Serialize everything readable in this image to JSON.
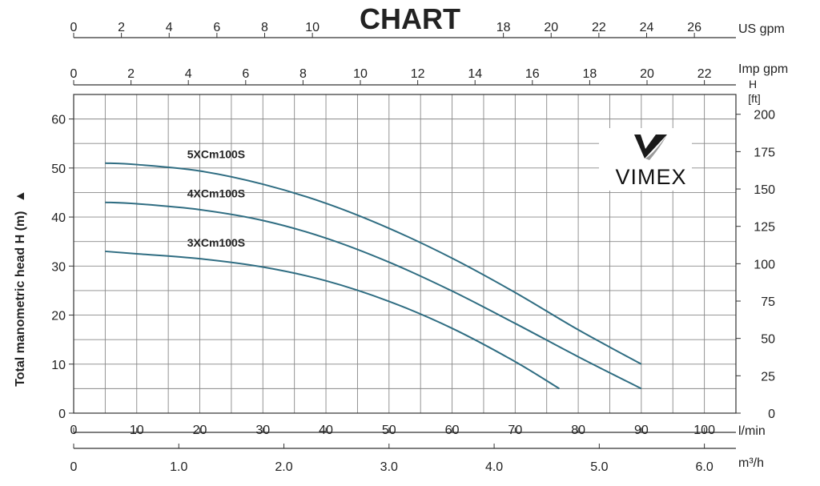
{
  "chart_data": {
    "type": "line",
    "title": "CHART",
    "ylabel": "Total manometric head H (m)",
    "ylabel_arrow": "▲",
    "x_axis_lmin": {
      "unit": "l/min",
      "range": [
        0,
        105
      ],
      "ticks": [
        0,
        10,
        20,
        30,
        40,
        50,
        60,
        70,
        80,
        90,
        100
      ]
    },
    "x_axis_m3h": {
      "unit": "m³/h",
      "range": [
        0,
        6.3
      ],
      "ticks": [
        0,
        1.0,
        2.0,
        3.0,
        4.0,
        5.0,
        6.0
      ],
      "tick_labels": [
        "0",
        "1.0",
        "2.0",
        "3.0",
        "4.0",
        "5.0",
        "6.0"
      ]
    },
    "x_axis_usgpm": {
      "unit": "US gpm",
      "range": [
        0,
        27.74
      ],
      "ticks": [
        0,
        2,
        4,
        6,
        8,
        10,
        18,
        20,
        22,
        24,
        26
      ]
    },
    "x_axis_impgpm": {
      "unit": "Imp gpm",
      "range": [
        0,
        23.1
      ],
      "ticks": [
        0,
        2,
        4,
        6,
        8,
        10,
        12,
        14,
        16,
        18,
        20,
        22
      ]
    },
    "y_axis_m": {
      "range": [
        0,
        65
      ],
      "ticks": [
        0,
        10,
        20,
        30,
        40,
        50,
        60
      ]
    },
    "y_axis_ft": {
      "unit_top": "H",
      "unit": "[ft]",
      "range": [
        0,
        213.25
      ],
      "ticks": [
        0,
        25,
        50,
        75,
        100,
        125,
        150,
        175,
        200
      ]
    },
    "grid": true,
    "series": [
      {
        "name": "5XCm100S",
        "x": [
          5,
          10,
          20,
          30,
          40,
          50,
          60,
          70,
          80,
          90
        ],
        "y": [
          51,
          50.7,
          49.4,
          46.7,
          42.8,
          37.7,
          31.6,
          24.6,
          17,
          10
        ]
      },
      {
        "name": "4XCm100S",
        "x": [
          5,
          10,
          20,
          30,
          40,
          50,
          60,
          70,
          80,
          90
        ],
        "y": [
          43,
          42.7,
          41.5,
          39.3,
          35.7,
          30.8,
          24.9,
          18.3,
          11.5,
          5
        ]
      },
      {
        "name": "3XCm100S",
        "x": [
          5,
          10,
          20,
          30,
          40,
          50,
          60,
          70,
          77
        ],
        "y": [
          33,
          32.5,
          31.5,
          29.8,
          27,
          22.8,
          17.3,
          10.5,
          5
        ]
      }
    ],
    "line_color": "#2f6d82"
  },
  "logo": {
    "text": "VIMEX"
  }
}
